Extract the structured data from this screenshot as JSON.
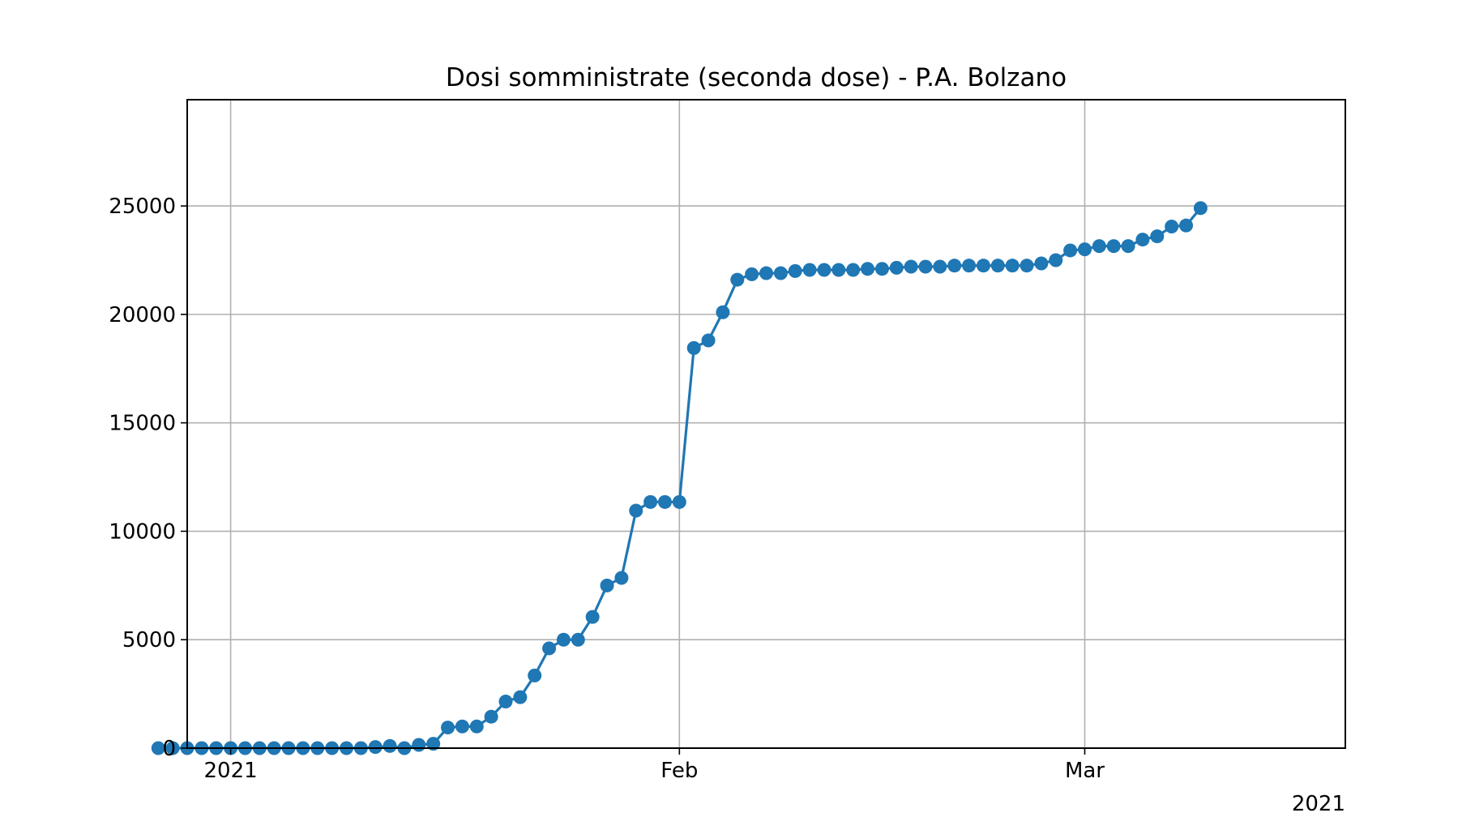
{
  "chart_data": {
    "type": "line",
    "title": "Dosi somministrate (seconda dose) - P.A. Bolzano",
    "xlabel": "",
    "ylabel": "",
    "x_start_date": "2020-12-27",
    "x_step_days": 1,
    "xlim": [
      "2020-12-29",
      "2021-03-19"
    ],
    "ylim": [
      0,
      29900
    ],
    "x_ticks": [
      {
        "date": "2021-01-01",
        "label": "2021"
      },
      {
        "date": "2021-02-01",
        "label": "Feb"
      },
      {
        "date": "2021-03-01",
        "label": "Mar"
      }
    ],
    "x_offset_label": "2021",
    "y_ticks": [
      0,
      5000,
      10000,
      15000,
      20000,
      25000
    ],
    "y_tick_labels": [
      "0",
      "5000",
      "10000",
      "15000",
      "20000",
      "25000"
    ],
    "grid": true,
    "color": "#1f77b4",
    "series": [
      {
        "name": "",
        "values": [
          0,
          0,
          0,
          0,
          0,
          0,
          0,
          0,
          0,
          0,
          0,
          0,
          0,
          0,
          0,
          50,
          100,
          0,
          150,
          200,
          950,
          1000,
          1000,
          1450,
          2150,
          2350,
          3350,
          4600,
          5000,
          5000,
          6050,
          7500,
          7850,
          10950,
          11350,
          11350,
          11350,
          18450,
          18800,
          20100,
          21600,
          21850,
          21900,
          21900,
          22000,
          22050,
          22050,
          22050,
          22050,
          22100,
          22100,
          22150,
          22200,
          22200,
          22200,
          22250,
          22250,
          22250,
          22250,
          22250,
          22250,
          22350,
          22500,
          22950,
          23000,
          23150,
          23150,
          23150,
          23450,
          23600,
          24050,
          24100,
          24900
        ]
      }
    ]
  }
}
